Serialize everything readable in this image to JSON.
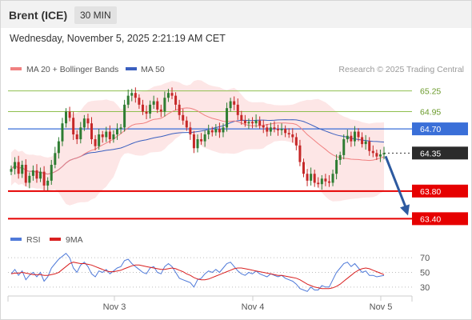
{
  "header": {
    "instrument": "Brent (ICE)",
    "interval": "30 MIN",
    "datetime": "Wednesday, November 5, 2025 2:21:19 AM CET"
  },
  "legend": {
    "ma20_label": "MA 20 + Bollinger Bands",
    "ma50_label": "MA 50",
    "copyright": "Research © 2025 Trading Central"
  },
  "rsi_legend": {
    "rsi_label": "RSI",
    "ma_label": "9MA"
  },
  "colors": {
    "ma20": "#f08080",
    "ma50": "#3a5fbf",
    "bollinger_fill": "#fde2e2",
    "candle_up": "#2e7d32",
    "candle_down": "#c62828",
    "pivot_line": "#8fbf4f",
    "current_level": "#3a6fd8",
    "support": "#e60000",
    "arrow": "#2d5aa0",
    "rsi": "#4f7ad9",
    "rsi_ma": "#d92020"
  },
  "chart_data": [
    {
      "type": "candlestick",
      "title": "",
      "x_ticks": [
        "Nov 3",
        "Nov 4",
        "Nov 5"
      ],
      "ylim": [
        63.3,
        65.5
      ],
      "levels": [
        {
          "value": 65.25,
          "label": "65.25",
          "kind": "resistance"
        },
        {
          "value": 64.95,
          "label": "64.95",
          "kind": "resistance"
        },
        {
          "value": 64.7,
          "label": "64.70",
          "kind": "pivot"
        },
        {
          "value": 64.35,
          "label": "64.35",
          "kind": "last"
        },
        {
          "value": 63.8,
          "label": "63.80",
          "kind": "support"
        },
        {
          "value": 63.4,
          "label": "63.40",
          "kind": "support"
        }
      ],
      "last_price": 64.35,
      "target": 63.4,
      "close": [
        64.12,
        64.22,
        64.05,
        64.18,
        63.92,
        64.02,
        64.1,
        63.98,
        64.08,
        63.88,
        63.95,
        64.18,
        64.35,
        64.52,
        64.78,
        64.95,
        64.86,
        64.62,
        64.55,
        64.72,
        64.85,
        64.78,
        64.55,
        64.45,
        64.62,
        64.58,
        64.66,
        64.55,
        64.62,
        64.7,
        64.72,
        65.05,
        65.18,
        65.22,
        65.15,
        65.05,
        64.95,
        64.92,
        65.05,
        65.1,
        64.98,
        64.95,
        65.15,
        65.22,
        65.18,
        65.05,
        64.9,
        64.82,
        64.72,
        64.62,
        64.42,
        64.55,
        64.52,
        64.62,
        64.68,
        64.65,
        64.7,
        64.65,
        64.72,
        65.0,
        65.1,
        65.05,
        64.9,
        64.82,
        64.78,
        64.8,
        64.78,
        64.82,
        64.75,
        64.72,
        64.66,
        64.72,
        64.7,
        64.68,
        64.7,
        64.64,
        64.62,
        64.58,
        64.46,
        64.22,
        64.05,
        63.95,
        64.05,
        63.92,
        63.9,
        63.98,
        63.94,
        63.92,
        64.05,
        64.25,
        64.32,
        64.55,
        64.6,
        64.52,
        64.66,
        64.58,
        64.48,
        64.52,
        64.38,
        64.35,
        64.3,
        64.33,
        64.35
      ]
    },
    {
      "type": "line",
      "title": "RSI",
      "ylim": [
        20,
        80
      ],
      "y_ticks": [
        70,
        50,
        30
      ],
      "series": [
        {
          "name": "RSI",
          "values": [
            48,
            54,
            46,
            52,
            40,
            46,
            50,
            44,
            50,
            38,
            44,
            56,
            62,
            68,
            72,
            76,
            70,
            56,
            50,
            60,
            64,
            58,
            48,
            44,
            52,
            50,
            54,
            48,
            52,
            56,
            58,
            66,
            68,
            62,
            58,
            54,
            50,
            48,
            56,
            58,
            50,
            48,
            58,
            62,
            58,
            50,
            42,
            40,
            38,
            36,
            30,
            40,
            42,
            48,
            52,
            50,
            54,
            50,
            56,
            62,
            64,
            58,
            52,
            48,
            46,
            50,
            48,
            52,
            48,
            46,
            44,
            48,
            46,
            44,
            46,
            42,
            40,
            38,
            34,
            28,
            26,
            24,
            30,
            26,
            26,
            32,
            30,
            30,
            40,
            50,
            56,
            62,
            64,
            58,
            62,
            56,
            50,
            52,
            46,
            46,
            44,
            45,
            46
          ]
        },
        {
          "name": "9MA",
          "values": [
            48,
            49,
            49,
            50,
            49,
            48,
            47,
            47,
            47,
            46,
            46,
            47,
            48,
            50,
            54,
            58,
            62,
            64,
            63,
            62,
            62,
            61,
            60,
            58,
            56,
            54,
            52,
            51,
            51,
            52,
            53,
            55,
            57,
            59,
            60,
            60,
            59,
            58,
            57,
            56,
            55,
            54,
            54,
            55,
            56,
            55,
            53,
            51,
            48,
            46,
            43,
            41,
            40,
            40,
            41,
            43,
            45,
            47,
            49,
            51,
            53,
            55,
            56,
            56,
            55,
            54,
            53,
            52,
            51,
            50,
            49,
            48,
            47,
            46,
            46,
            45,
            44,
            43,
            42,
            40,
            37,
            34,
            32,
            30,
            29,
            28,
            28,
            28,
            29,
            31,
            34,
            38,
            42,
            46,
            50,
            53,
            55,
            56,
            55,
            53,
            51,
            49,
            47
          ]
        }
      ]
    }
  ]
}
